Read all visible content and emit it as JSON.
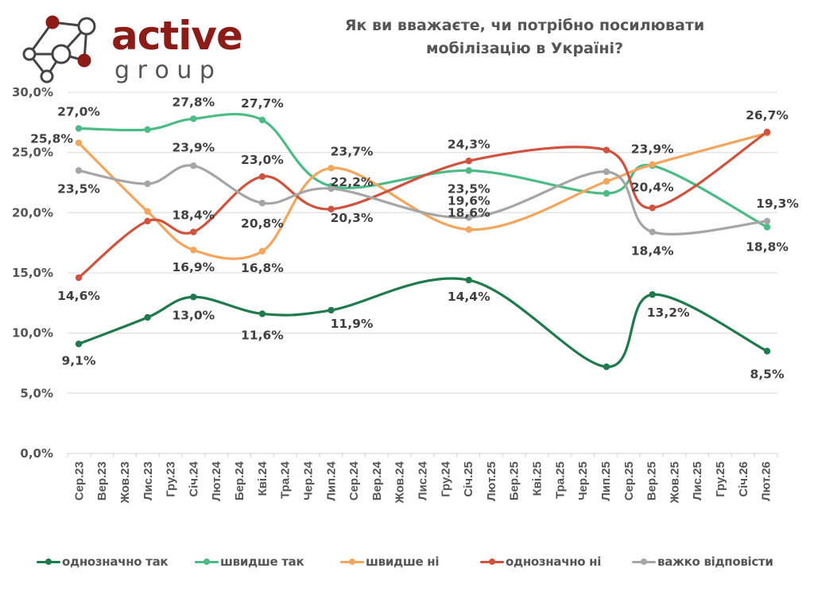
{
  "logo": {
    "word1": "active",
    "word2": "g r o u p",
    "brand_color": "#8c1c17"
  },
  "chart_data": {
    "type": "line",
    "title": "Як ви вважаєте, чи потрібно посилювати мобілізацію в Україні?",
    "title_lines": [
      "Як ви вважаєте, чи потрібно посилювати",
      "мобілізацію в Україні?"
    ],
    "xlabel": "",
    "ylabel": "",
    "ylim": [
      0,
      30
    ],
    "yticks": [
      0,
      5,
      10,
      15,
      20,
      25,
      30
    ],
    "ytick_labels": [
      "0,0%",
      "5,0%",
      "10,0%",
      "15,0%",
      "20,0%",
      "25,0%",
      "30,0%"
    ],
    "grid": true,
    "smooth": true,
    "legend_position": "bottom",
    "categories": [
      "Сер.23",
      "Вер.23",
      "Жов.23",
      "Лис.23",
      "Гру.23",
      "Січ.24",
      "Лют.24",
      "Бер.24",
      "Кві.24",
      "Тра.24",
      "Чер.24",
      "Лип.24",
      "Сер.24",
      "Вер.24",
      "Жов.24",
      "Лис.24",
      "Гру.24",
      "Січ.25",
      "Лют.25",
      "Бер.25",
      "Кві.25",
      "Тра.25",
      "Чер.25",
      "Лип.25",
      "Сер.25",
      "Вер.25",
      "Жов.25",
      "Лис.25",
      "Гру.25",
      "Січ.26",
      "Лют.26"
    ],
    "series": [
      {
        "name": "однозначно так",
        "color": "#1f7a4d",
        "points": [
          {
            "x": "Сер.23",
            "y": 9.1,
            "label": "9,1%"
          },
          {
            "x": "Лис.23",
            "y": 11.3,
            "label": ""
          },
          {
            "x": "Січ.24",
            "y": 13.0,
            "label": "13,0%"
          },
          {
            "x": "Кві.24",
            "y": 11.6,
            "label": "11,6%"
          },
          {
            "x": "Лип.24",
            "y": 11.9,
            "label": "11,9%"
          },
          {
            "x": "Січ.25",
            "y": 14.4,
            "label": "14,4%"
          },
          {
            "x": "Лип.25",
            "y": 7.2,
            "label": ""
          },
          {
            "x": "Вер.25",
            "y": 13.2,
            "label": "13,2%"
          },
          {
            "x": "Лют.26",
            "y": 8.5,
            "label": "8,5%"
          }
        ]
      },
      {
        "name": "швидше так",
        "color": "#4dbb85",
        "points": [
          {
            "x": "Сер.23",
            "y": 27.0,
            "label": "27,0%"
          },
          {
            "x": "Лис.23",
            "y": 26.9,
            "label": ""
          },
          {
            "x": "Січ.24",
            "y": 27.8,
            "label": "27,8%"
          },
          {
            "x": "Кві.24",
            "y": 27.7,
            "label": "27,7%"
          },
          {
            "x": "Лип.24",
            "y": 22.2,
            "label": "22,2%"
          },
          {
            "x": "Січ.25",
            "y": 23.5,
            "label": "23,5%"
          },
          {
            "x": "Лип.25",
            "y": 21.6,
            "label": ""
          },
          {
            "x": "Вер.25",
            "y": 23.9,
            "label": "23,9%"
          },
          {
            "x": "Лют.26",
            "y": 18.8,
            "label": "18,8%"
          }
        ]
      },
      {
        "name": "швидше ні",
        "color": "#f2a65e",
        "points": [
          {
            "x": "Сер.23",
            "y": 25.8,
            "label": "25,8%"
          },
          {
            "x": "Лис.23",
            "y": 20.1,
            "label": ""
          },
          {
            "x": "Січ.24",
            "y": 16.9,
            "label": "16,9%"
          },
          {
            "x": "Кві.24",
            "y": 16.8,
            "label": "16,8%"
          },
          {
            "x": "Лип.24",
            "y": 23.7,
            "label": "23,7%"
          },
          {
            "x": "Січ.25",
            "y": 18.6,
            "label": "18,6%"
          },
          {
            "x": "Лип.25",
            "y": 22.6,
            "label": ""
          },
          {
            "x": "Вер.25",
            "y": 24.0,
            "label": ""
          },
          {
            "x": "Лют.26",
            "y": 26.6,
            "label": ""
          }
        ]
      },
      {
        "name": "однозначно ні",
        "color": "#d0533f",
        "points": [
          {
            "x": "Сер.23",
            "y": 14.6,
            "label": "14,6%"
          },
          {
            "x": "Лис.23",
            "y": 19.3,
            "label": ""
          },
          {
            "x": "Січ.24",
            "y": 18.4,
            "label": "18,4%"
          },
          {
            "x": "Кві.24",
            "y": 23.0,
            "label": "23,0%"
          },
          {
            "x": "Лип.24",
            "y": 20.3,
            "label": "20,3%"
          },
          {
            "x": "Січ.25",
            "y": 24.3,
            "label": "24,3%"
          },
          {
            "x": "Лип.25",
            "y": 25.2,
            "label": ""
          },
          {
            "x": "Вер.25",
            "y": 20.4,
            "label": "20,4%"
          },
          {
            "x": "Лют.26",
            "y": 26.7,
            "label": "26,7%"
          }
        ]
      },
      {
        "name": "важко відповісти",
        "color": "#a6a6a6",
        "points": [
          {
            "x": "Сер.23",
            "y": 23.5,
            "label": "23,5%"
          },
          {
            "x": "Лис.23",
            "y": 22.4,
            "label": ""
          },
          {
            "x": "Січ.24",
            "y": 23.9,
            "label": "23,9%"
          },
          {
            "x": "Кві.24",
            "y": 20.8,
            "label": "20,8%"
          },
          {
            "x": "Лип.24",
            "y": 22.0,
            "label": ""
          },
          {
            "x": "Січ.25",
            "y": 19.6,
            "label": "19,6%"
          },
          {
            "x": "Лип.25",
            "y": 23.4,
            "label": ""
          },
          {
            "x": "Вер.25",
            "y": 18.4,
            "label": "18,4%"
          },
          {
            "x": "Лют.26",
            "y": 19.3,
            "label": "19,3%"
          }
        ]
      }
    ]
  }
}
